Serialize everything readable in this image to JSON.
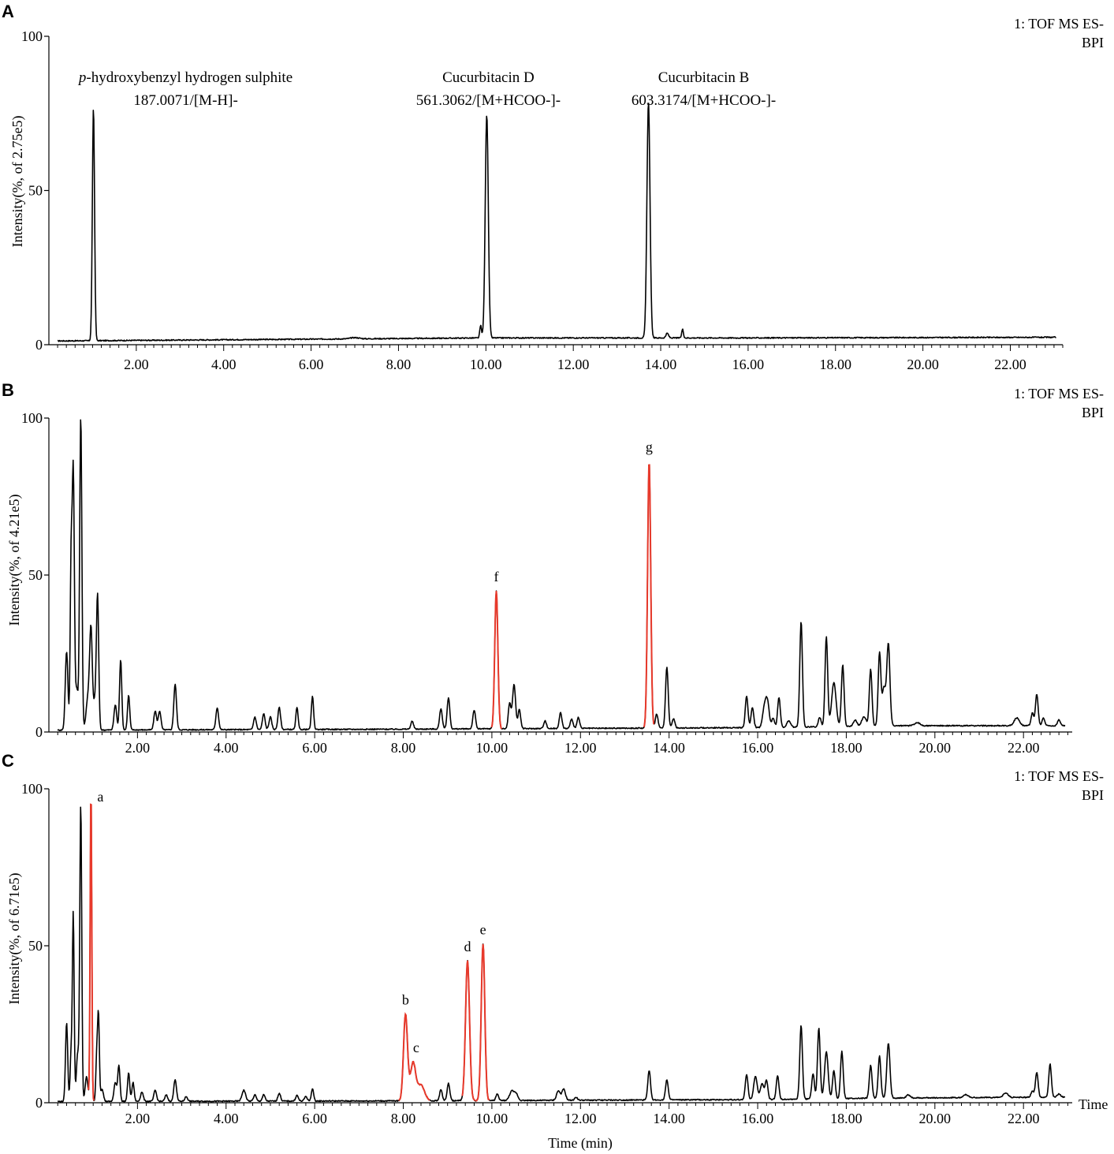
{
  "figure": {
    "x_axis_title": "Time (min)",
    "x_axis_suffix": "Time"
  },
  "chart_data": [
    {
      "type": "line",
      "panel": "A",
      "title": "",
      "xlabel": "",
      "ylabel": "Intensity(%, of 2.75e5)",
      "xlim": [
        0.0,
        23.2
      ],
      "ylim": [
        0,
        100
      ],
      "x_ticks": [
        "2.00",
        "4.00",
        "6.00",
        "8.00",
        "10.00",
        "12.00",
        "14.00",
        "16.00",
        "18.00",
        "20.00",
        "22.00"
      ],
      "y_ticks": [
        "0",
        "50",
        "100"
      ],
      "instrument": [
        "1: TOF MS ES-",
        "BPI"
      ],
      "baseline": [
        [
          0.0,
          1.2
        ],
        [
          4.0,
          1.6
        ],
        [
          10.0,
          2.2
        ],
        [
          16.0,
          2.2
        ],
        [
          23.0,
          2.4
        ]
      ],
      "series": [
        {
          "color": "#000000",
          "peaks": [
            [
              1.02,
              75.5,
              0.025
            ],
            [
              9.88,
              4.0,
              0.02
            ],
            [
              10.02,
              72.5,
              0.035
            ],
            [
              13.72,
              76.5,
              0.035
            ],
            [
              14.15,
              1.5,
              0.03
            ],
            [
              14.5,
              2.8,
              0.02
            ],
            [
              7.0,
              0.4,
              0.1
            ]
          ]
        }
      ],
      "annotations": [
        {
          "x": 1.02,
          "lines": [
            "p-hydroxybenzyl hydrogen sulphite",
            "187.0071/[M-H]-"
          ]
        },
        {
          "x": 10.02,
          "lines": [
            "Cucurbitacin D",
            "561.3062/[M+HCOO-]-"
          ]
        },
        {
          "x": 13.72,
          "lines": [
            "Cucurbitacin B",
            "603.3174/[M+HCOO-]-"
          ]
        }
      ]
    },
    {
      "type": "line",
      "panel": "B",
      "title": "",
      "xlabel": "",
      "ylabel": "Intensity(%, of 4.21e5)",
      "xlim": [
        0.0,
        23.1
      ],
      "ylim": [
        0,
        100
      ],
      "x_ticks": [
        "2.00",
        "4.00",
        "6.00",
        "8.00",
        "10.00",
        "12.00",
        "14.00",
        "16.00",
        "18.00",
        "20.00",
        "22.00"
      ],
      "y_ticks": [
        "0",
        "50",
        "100"
      ],
      "instrument": [
        "1: TOF MS ES-",
        "BPI"
      ],
      "baseline": [
        [
          0.0,
          0.6
        ],
        [
          8.0,
          0.9
        ],
        [
          16.0,
          1.4
        ],
        [
          19.0,
          2.0
        ],
        [
          23.0,
          2.0
        ]
      ],
      "series": [
        {
          "color": "#000000",
          "peaks": [
            [
              0.4,
              25.0,
              0.03
            ],
            [
              0.5,
              49.0,
              0.02
            ],
            [
              0.55,
              83.0,
              0.025
            ],
            [
              0.63,
              13.0,
              0.03
            ],
            [
              0.72,
              100.0,
              0.025
            ],
            [
              0.88,
              10.0,
              0.04
            ],
            [
              0.95,
              31.0,
              0.03
            ],
            [
              1.05,
              10.0,
              0.04
            ],
            [
              1.1,
              39.0,
              0.025
            ],
            [
              1.5,
              8.0,
              0.03
            ],
            [
              1.62,
              22.5,
              0.025
            ],
            [
              1.8,
              11.0,
              0.025
            ],
            [
              2.4,
              6.0,
              0.03
            ],
            [
              2.5,
              6.0,
              0.03
            ],
            [
              2.85,
              14.5,
              0.03
            ],
            [
              3.8,
              7.0,
              0.03
            ],
            [
              4.65,
              4.0,
              0.03
            ],
            [
              4.85,
              5.0,
              0.03
            ],
            [
              5.0,
              4.0,
              0.03
            ],
            [
              5.2,
              7.0,
              0.03
            ],
            [
              5.6,
              7.0,
              0.025
            ],
            [
              5.95,
              10.5,
              0.025
            ],
            [
              8.2,
              2.5,
              0.03
            ],
            [
              8.85,
              6.5,
              0.03
            ],
            [
              9.02,
              10.0,
              0.03
            ],
            [
              9.6,
              6.0,
              0.03
            ],
            [
              10.1,
              44.0,
              0.035
            ],
            [
              10.4,
              8.0,
              0.03
            ],
            [
              10.5,
              14.0,
              0.035
            ],
            [
              10.62,
              6.0,
              0.03
            ],
            [
              11.2,
              2.5,
              0.03
            ],
            [
              11.55,
              5.0,
              0.03
            ],
            [
              11.8,
              3.0,
              0.03
            ],
            [
              11.95,
              3.5,
              0.03
            ],
            [
              13.55,
              85.0,
              0.035
            ],
            [
              13.72,
              4.5,
              0.03
            ],
            [
              13.95,
              19.5,
              0.03
            ],
            [
              14.1,
              3.0,
              0.03
            ],
            [
              15.75,
              10.0,
              0.03
            ],
            [
              15.88,
              6.5,
              0.03
            ],
            [
              16.15,
              6.0,
              0.04
            ],
            [
              16.22,
              8.0,
              0.04
            ],
            [
              16.35,
              3.0,
              0.03
            ],
            [
              16.48,
              9.5,
              0.03
            ],
            [
              16.7,
              2.0,
              0.04
            ],
            [
              16.98,
              33.5,
              0.03
            ],
            [
              17.4,
              3.0,
              0.03
            ],
            [
              17.55,
              28.5,
              0.03
            ],
            [
              17.72,
              14.0,
              0.05
            ],
            [
              17.92,
              19.5,
              0.03
            ],
            [
              18.2,
              2.0,
              0.04
            ],
            [
              18.4,
              3.0,
              0.05
            ],
            [
              18.55,
              18.0,
              0.03
            ],
            [
              18.75,
              23.0,
              0.03
            ],
            [
              18.85,
              12.0,
              0.04
            ],
            [
              18.95,
              26.0,
              0.035
            ],
            [
              19.6,
              1.0,
              0.06
            ],
            [
              21.85,
              2.5,
              0.06
            ],
            [
              22.2,
              4.0,
              0.03
            ],
            [
              22.3,
              10.0,
              0.03
            ],
            [
              22.45,
              2.5,
              0.03
            ],
            [
              22.8,
              2.0,
              0.03
            ]
          ]
        }
      ],
      "highlight_series": [
        {
          "color": "#E8392B",
          "label": "f",
          "peak": [
            10.1,
            44.0,
            0.035
          ],
          "x_range": [
            9.98,
            10.22
          ]
        },
        {
          "color": "#E8392B",
          "label": "g",
          "peak": [
            13.55,
            85.0,
            0.035
          ],
          "x_range": [
            13.43,
            13.67
          ]
        }
      ]
    },
    {
      "type": "line",
      "panel": "C",
      "title": "",
      "xlabel": "Time (min)",
      "ylabel": "Intensity(%, of 6.71e5)",
      "xlim": [
        0.0,
        23.1
      ],
      "ylim": [
        0,
        100
      ],
      "x_ticks": [
        "2.00",
        "4.00",
        "6.00",
        "8.00",
        "10.00",
        "12.00",
        "14.00",
        "16.00",
        "18.00",
        "20.00",
        "22.00"
      ],
      "y_ticks": [
        "0",
        "50",
        "100"
      ],
      "instrument": [
        "1: TOF MS ES-",
        "BPI"
      ],
      "baseline": [
        [
          0.0,
          0.4
        ],
        [
          8.0,
          0.6
        ],
        [
          16.0,
          1.0
        ],
        [
          19.0,
          1.5
        ],
        [
          23.0,
          1.8
        ]
      ],
      "series": [
        {
          "color": "#000000",
          "peaks": [
            [
              0.4,
              25.0,
              0.025
            ],
            [
              0.5,
              15.0,
              0.02
            ],
            [
              0.55,
              60.0,
              0.02
            ],
            [
              0.65,
              15.0,
              0.03
            ],
            [
              0.72,
              94.0,
              0.022
            ],
            [
              0.85,
              8.0,
              0.03
            ],
            [
              0.95,
              100.0,
              0.018
            ],
            [
              1.08,
              14.0,
              0.02
            ],
            [
              1.12,
              27.0,
              0.02
            ],
            [
              1.2,
              4.0,
              0.03
            ],
            [
              1.5,
              6.0,
              0.03
            ],
            [
              1.58,
              11.5,
              0.025
            ],
            [
              1.8,
              9.0,
              0.025
            ],
            [
              1.9,
              6.0,
              0.025
            ],
            [
              2.1,
              3.0,
              0.03
            ],
            [
              2.4,
              3.5,
              0.03
            ],
            [
              2.65,
              2.0,
              0.03
            ],
            [
              2.85,
              7.0,
              0.03
            ],
            [
              3.1,
              1.5,
              0.03
            ],
            [
              4.4,
              3.5,
              0.04
            ],
            [
              4.65,
              2.0,
              0.03
            ],
            [
              4.85,
              2.0,
              0.03
            ],
            [
              5.2,
              2.5,
              0.03
            ],
            [
              5.6,
              1.8,
              0.03
            ],
            [
              5.8,
              1.5,
              0.03
            ],
            [
              5.95,
              4.0,
              0.025
            ],
            [
              8.05,
              27.5,
              0.045
            ],
            [
              8.22,
              12.0,
              0.06
            ],
            [
              8.4,
              5.0,
              0.08
            ],
            [
              8.85,
              3.5,
              0.03
            ],
            [
              9.02,
              5.5,
              0.03
            ],
            [
              9.45,
              44.5,
              0.045
            ],
            [
              9.8,
              50.0,
              0.04
            ],
            [
              10.12,
              2.0,
              0.03
            ],
            [
              10.45,
              3.0,
              0.05
            ],
            [
              10.55,
              2.0,
              0.04
            ],
            [
              11.5,
              3.0,
              0.04
            ],
            [
              11.62,
              3.5,
              0.04
            ],
            [
              11.9,
              1.0,
              0.03
            ],
            [
              13.55,
              9.5,
              0.03
            ],
            [
              13.95,
              6.5,
              0.03
            ],
            [
              15.75,
              8.0,
              0.03
            ],
            [
              15.95,
              7.5,
              0.04
            ],
            [
              16.1,
              5.0,
              0.04
            ],
            [
              16.2,
              6.0,
              0.03
            ],
            [
              16.45,
              7.5,
              0.03
            ],
            [
              16.98,
              23.5,
              0.03
            ],
            [
              17.25,
              8.0,
              0.03
            ],
            [
              17.38,
              22.5,
              0.03
            ],
            [
              17.55,
              15.0,
              0.04
            ],
            [
              17.72,
              9.0,
              0.03
            ],
            [
              17.9,
              15.0,
              0.03
            ],
            [
              18.55,
              10.5,
              0.03
            ],
            [
              18.75,
              13.5,
              0.03
            ],
            [
              18.95,
              17.5,
              0.035
            ],
            [
              19.4,
              1.0,
              0.04
            ],
            [
              20.7,
              1.0,
              0.05
            ],
            [
              21.6,
              1.5,
              0.05
            ],
            [
              22.2,
              2.0,
              0.03
            ],
            [
              22.3,
              8.0,
              0.03
            ],
            [
              22.6,
              10.5,
              0.03
            ],
            [
              22.8,
              1.0,
              0.04
            ]
          ]
        }
      ],
      "highlight_series": [
        {
          "color": "#E8392B",
          "label": "a",
          "peak": [
            0.95,
            100.0,
            0.018
          ],
          "x_range": [
            0.88,
            1.02
          ]
        },
        {
          "color": "#E8392B",
          "label": "b",
          "peak": [
            8.05,
            27.5,
            0.045
          ],
          "x_range": [
            7.9,
            8.6
          ]
        },
        {
          "color": "#E8392B",
          "label": "c",
          "peak": [
            8.22,
            12.0,
            0.06
          ],
          "x_range": [
            7.9,
            8.6
          ]
        },
        {
          "color": "#E8392B",
          "label": "d",
          "peak": [
            9.45,
            44.5,
            0.045
          ],
          "x_range": [
            9.33,
            9.62
          ]
        },
        {
          "color": "#E8392B",
          "label": "e",
          "peak": [
            9.8,
            50.0,
            0.04
          ],
          "x_range": [
            9.62,
            9.95
          ]
        }
      ]
    }
  ]
}
